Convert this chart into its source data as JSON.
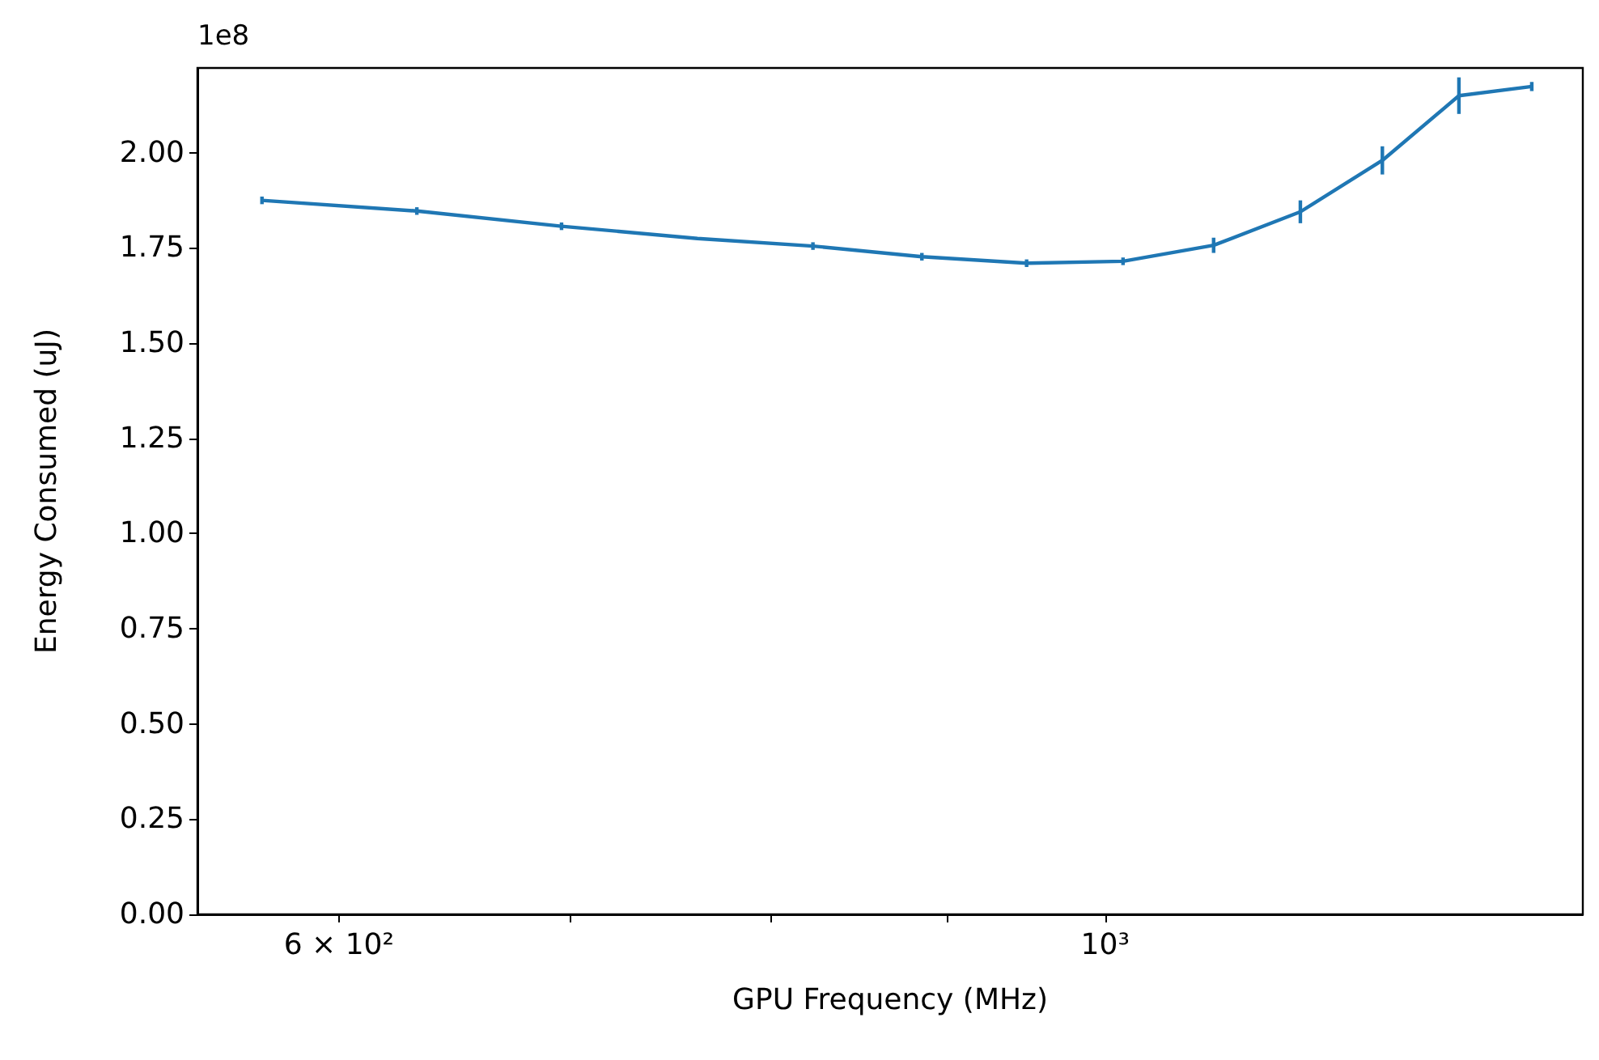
{
  "chart_data": {
    "type": "line",
    "xlabel": "GPU Frequency (MHz)",
    "ylabel": "Energy Consumed (uJ)",
    "annotations": [
      "1e8"
    ],
    "x": [
      570,
      632,
      696,
      762,
      823,
      885,
      949,
      1012,
      1075,
      1139,
      1203,
      1266,
      1329
    ],
    "series": [
      {
        "color": "#1f77b4",
        "values": [
          1.875,
          1.847,
          1.807,
          1.775,
          1.755,
          1.727,
          1.71,
          1.715,
          1.757,
          1.845,
          1.98,
          2.15,
          2.174
        ],
        "errors": [
          0.01,
          0.01,
          0.01,
          null,
          0.01,
          0.01,
          0.01,
          0.01,
          0.02,
          0.03,
          0.037,
          0.048,
          0.012
        ]
      }
    ],
    "log": "x",
    "xlim": [
      546,
      1375
    ],
    "xticks": [
      {
        "value": 600,
        "label": "6 × 10²"
      },
      {
        "value": 700,
        "label": null
      },
      {
        "value": 800,
        "label": null
      },
      {
        "value": 900,
        "label": null
      },
      {
        "value": 1000,
        "label": "10³"
      }
    ],
    "ylim": [
      0,
      2.2227
    ],
    "yticks": [
      {
        "value": 0,
        "label": "0.00"
      },
      {
        "value": 0.25,
        "label": "0.25"
      },
      {
        "value": 0.5,
        "label": "0.50"
      },
      {
        "value": 0.75,
        "label": "0.75"
      },
      {
        "value": 1,
        "label": "1.00"
      },
      {
        "value": 1.25,
        "label": "1.25"
      },
      {
        "value": 1.5,
        "label": "1.50"
      },
      {
        "value": 1.75,
        "label": "1.75"
      },
      {
        "value": 2,
        "label": "2.00"
      }
    ],
    "grid": false,
    "marker": "none"
  }
}
